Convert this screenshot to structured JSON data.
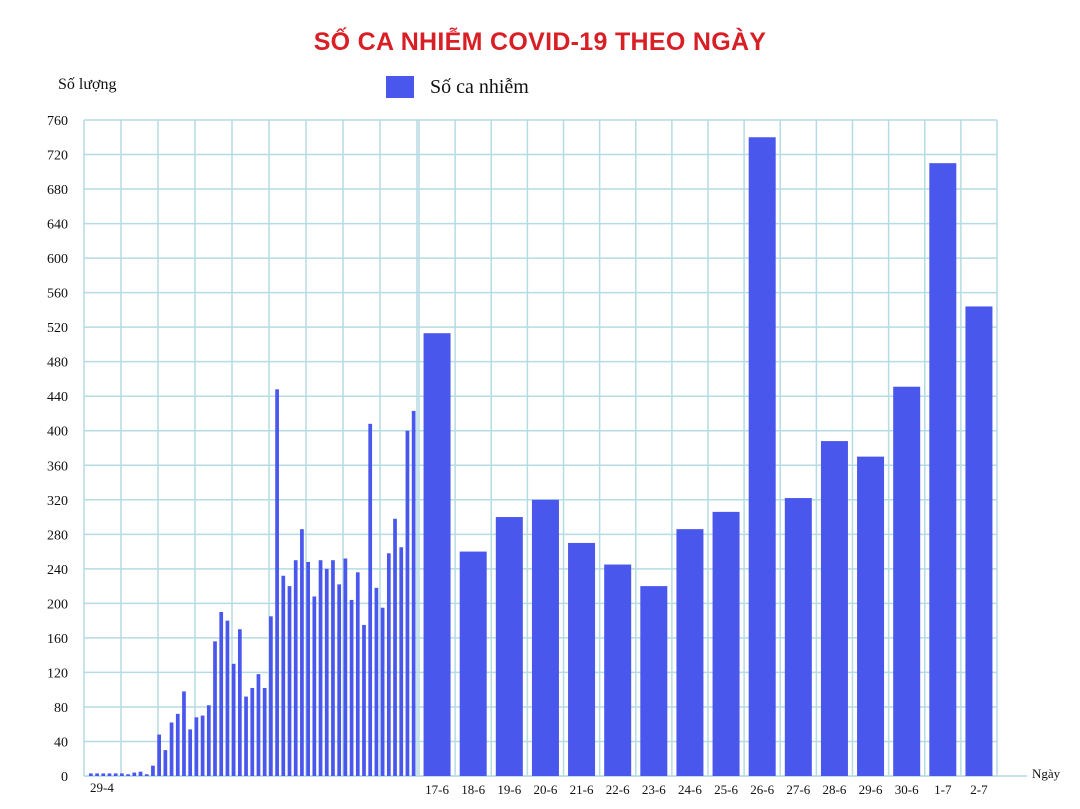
{
  "chart_data": {
    "type": "bar",
    "title": "SỐ CA NHIỄM COVID-19 THEO NGÀY",
    "ylabel": "Số lượng",
    "xlabel": "Ngày",
    "legend": [
      "Số ca nhiễm"
    ],
    "legend_position": "top",
    "ylim": [
      0,
      760
    ],
    "yticks": [
      0,
      40,
      80,
      120,
      160,
      200,
      240,
      280,
      320,
      360,
      400,
      440,
      480,
      520,
      560,
      600,
      640,
      680,
      720,
      760
    ],
    "grid": true,
    "early_period": {
      "first_label": "29-4",
      "values": [
        3,
        3,
        3,
        3,
        3,
        3,
        2,
        4,
        5,
        2,
        12,
        48,
        30,
        62,
        72,
        98,
        54,
        68,
        70,
        82,
        156,
        190,
        180,
        130,
        170,
        92,
        102,
        118,
        102,
        185,
        448,
        232,
        220,
        250,
        286,
        248,
        208,
        250,
        240,
        250,
        222,
        252,
        204,
        236,
        175,
        408,
        218,
        195,
        258,
        298,
        265,
        400,
        423
      ]
    },
    "categories": [
      "17-6",
      "18-6",
      "19-6",
      "20-6",
      "21-6",
      "22-6",
      "23-6",
      "24-6",
      "25-6",
      "26-6",
      "27-6",
      "28-6",
      "29-6",
      "30-6",
      "1-7",
      "2-7"
    ],
    "values": [
      513,
      260,
      300,
      320,
      270,
      245,
      220,
      286,
      306,
      740,
      322,
      388,
      370,
      451,
      710,
      544
    ],
    "colors": {
      "bar": "#4a57ec",
      "grid": "#b5dce3",
      "title": "#d81f26"
    }
  }
}
